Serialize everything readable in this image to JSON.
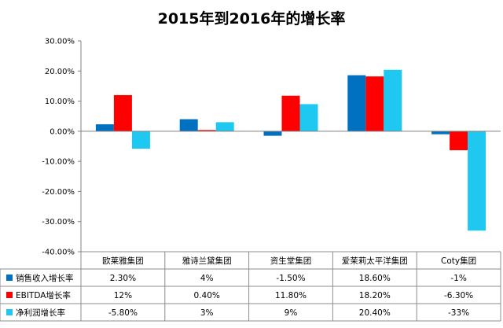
{
  "chart_data": {
    "type": "bar",
    "title": "2015年到2016年的增长率",
    "categories": [
      "欧莱雅集团",
      "雅诗兰黛集团",
      "资生堂集团",
      "爱茉莉太平洋集团",
      "Coty集团"
    ],
    "ylim": [
      -40,
      30
    ],
    "yticks": [
      30,
      20,
      10,
      0,
      -10,
      -20,
      -30,
      -40
    ],
    "ytick_labels": [
      "30.00%",
      "20.00%",
      "10.00%",
      "0.00%",
      "-10.00%",
      "-20.00%",
      "-30.00%",
      "-40.00%"
    ],
    "grid": false,
    "legend": "data-table-below",
    "series": [
      {
        "name": "销售收入增长率",
        "color": "#0070C0",
        "values": [
          2.3,
          4,
          -1.5,
          18.6,
          -1
        ],
        "labels": [
          "2.30%",
          "4%",
          "-1.50%",
          "18.60%",
          "-1%"
        ]
      },
      {
        "name": "EBITDA增长率",
        "color": "#FF0000",
        "values": [
          12,
          0.4,
          11.8,
          18.2,
          -6.3
        ],
        "labels": [
          "12%",
          "0.40%",
          "11.80%",
          "18.20%",
          "-6.30%"
        ]
      },
      {
        "name": "净利润增长率",
        "color": "#1FC8F0",
        "values": [
          -5.8,
          3,
          9,
          20.4,
          -33
        ],
        "labels": [
          "-5.80%",
          "3%",
          "9%",
          "20.40%",
          "-33%"
        ]
      }
    ]
  }
}
